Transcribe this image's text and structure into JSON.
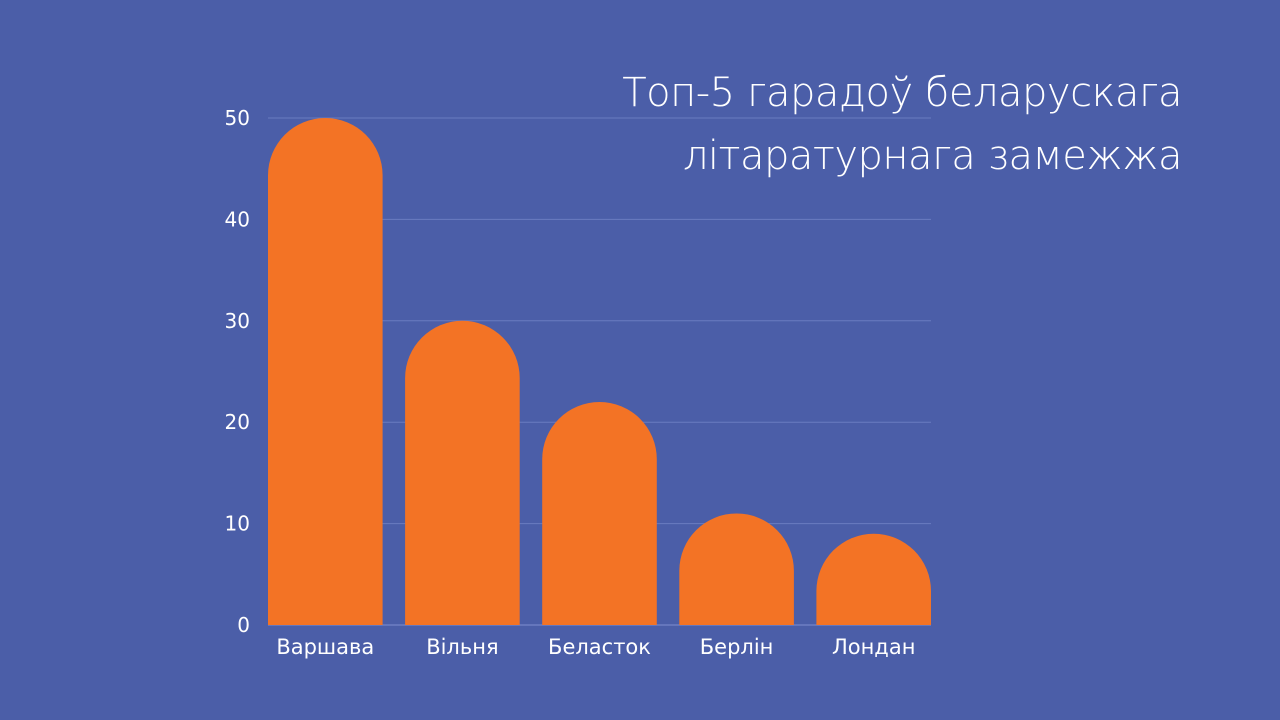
{
  "chart_data": {
    "type": "bar",
    "title_lines": [
      "Топ-5 гарадоў беларускага",
      "літаратурнага замежжа"
    ],
    "categories": [
      "Варшава",
      "Вільня",
      "Беласток",
      "Берлін",
      "Лондан"
    ],
    "values": [
      50,
      30,
      22,
      11,
      9
    ],
    "ylim": [
      0,
      50
    ],
    "yticks": [
      0,
      10,
      20,
      30,
      40,
      50
    ],
    "grid": true,
    "colors": {
      "background": "#4b5ea8",
      "bar": "#f37325",
      "grid": "#6a7cc0",
      "text": "#ffffff"
    }
  }
}
